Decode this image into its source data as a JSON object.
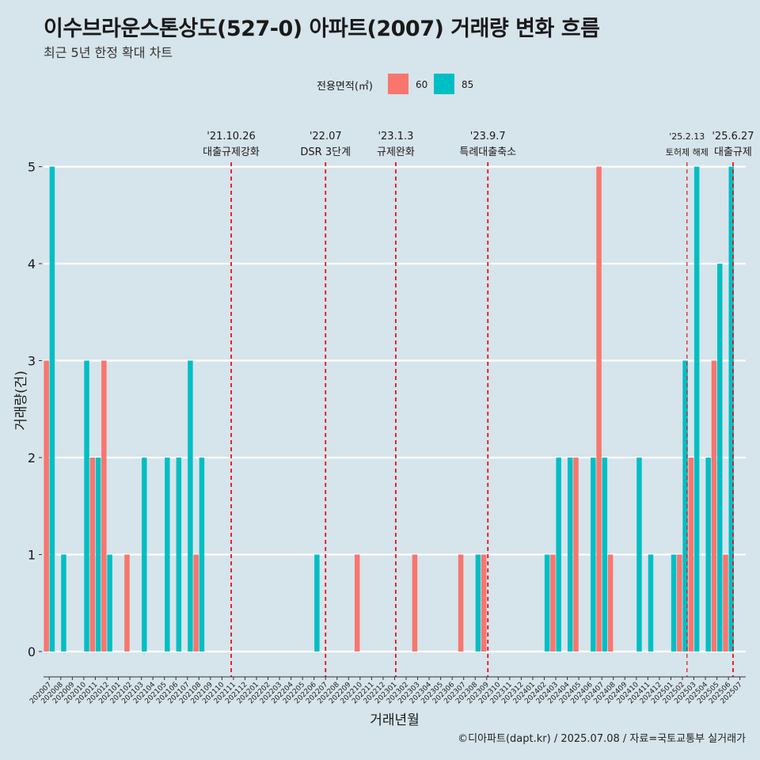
{
  "title": "이수브라운스톤상도(527-0) 아파트(2007) 거래량 변화 흐름",
  "subtitle": "최근 5년 한정 확대 차트",
  "caption": "©디아파트(dapt.kr) / 2025.07.08 / 자료=국토교통부 실거래가",
  "legend": {
    "title": "전용면적(㎡)",
    "items": [
      {
        "label": "60",
        "color": "#f8766d"
      },
      {
        "label": "85",
        "color": "#00bfc4"
      }
    ]
  },
  "chart_data": {
    "type": "bar",
    "xlabel": "거래년월",
    "ylabel": "거래량(건)",
    "ylim": [
      0,
      5
    ],
    "yticks": [
      "0",
      "1",
      "2",
      "3",
      "4",
      "5"
    ],
    "grid": true,
    "legend_position": "top",
    "categories": [
      "202007",
      "202008",
      "202009",
      "202010",
      "202011",
      "202012",
      "202101",
      "202102",
      "202103",
      "202104",
      "202105",
      "202106",
      "202107",
      "202108",
      "202109",
      "202110",
      "202111",
      "202112",
      "202201",
      "202202",
      "202203",
      "202204",
      "202205",
      "202206",
      "202207",
      "202208",
      "202209",
      "202210",
      "202211",
      "202212",
      "202301",
      "202302",
      "202303",
      "202304",
      "202305",
      "202306",
      "202307",
      "202308",
      "202309",
      "202310",
      "202311",
      "202312",
      "202401",
      "202402",
      "202403",
      "202404",
      "202405",
      "202406",
      "202407",
      "202408",
      "202409",
      "202410",
      "202411",
      "202412",
      "202501",
      "202502",
      "202503",
      "202504",
      "202505",
      "202506",
      "202507"
    ],
    "series": [
      {
        "name": "60",
        "color": "#f8766d",
        "values": [
          3,
          0,
          0,
          0,
          2,
          3,
          0,
          1,
          0,
          0,
          0,
          0,
          0,
          1,
          0,
          0,
          0,
          0,
          0,
          0,
          0,
          0,
          0,
          0,
          0,
          0,
          0,
          1,
          0,
          0,
          0,
          0,
          1,
          0,
          0,
          0,
          1,
          0,
          1,
          0,
          0,
          0,
          0,
          0,
          1,
          0,
          2,
          0,
          5,
          1,
          0,
          0,
          0,
          0,
          0,
          1,
          2,
          0,
          3,
          1,
          0
        ]
      },
      {
        "name": "85",
        "color": "#00bfc4",
        "values": [
          5,
          1,
          0,
          3,
          2,
          1,
          0,
          0,
          2,
          0,
          2,
          2,
          3,
          2,
          0,
          0,
          0,
          0,
          0,
          0,
          0,
          0,
          0,
          1,
          0,
          0,
          0,
          0,
          0,
          0,
          0,
          0,
          0,
          0,
          0,
          0,
          0,
          1,
          0,
          0,
          0,
          0,
          0,
          1,
          2,
          2,
          0,
          2,
          2,
          0,
          0,
          2,
          1,
          0,
          1,
          3,
          5,
          2,
          4,
          5,
          0
        ]
      }
    ],
    "annotations": [
      {
        "date": "'21.10.26",
        "label": "대출규제강화",
        "category_index": 15.8
      },
      {
        "date": "'22.07",
        "label": "DSR 3단계",
        "category_index": 24.0
      },
      {
        "date": "'23.1.3",
        "label": "규제완화",
        "category_index": 30.1
      },
      {
        "date": "'23.9.7",
        "label": "특례대출축소",
        "category_index": 38.1
      },
      {
        "date": "'25.2.13",
        "label": "토허제 해제",
        "category_index": 55.4
      },
      {
        "date": "'25.6.27",
        "label": "대출규제",
        "category_index": 59.4
      }
    ]
  }
}
